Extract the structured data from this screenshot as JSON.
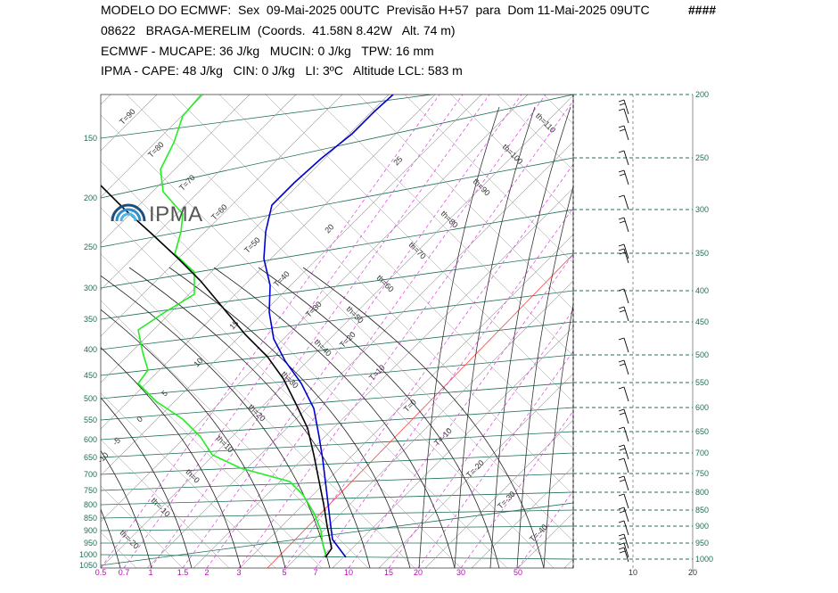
{
  "header": {
    "line1": "MODELO DO ECMWF:  Sex  09-Mai-2025 00UTC  Previsão H+57  para  Dom 11-Mai-2025 09UTC",
    "hash": "####",
    "line2": "08622   BRAGA-MERELIM  (Coords.  41.58N 8.42W   Alt. 74 m)",
    "line3": "ECMWF - MUCAPE: 36 J/kg   MUCIN: 0 J/kg   TPW: 16 mm",
    "line4": "IPMA - CAPE: 48 J/kg   CIN: 0 J/kg   LI: 3ºC   Altitude LCL: 583 m"
  },
  "logo": {
    "text": "IPMA"
  },
  "chart_data": {
    "type": "skew-t",
    "pressure_axis_left": [
      "150",
      "200",
      "250",
      "300",
      "350",
      "400",
      "450",
      "500",
      "550",
      "600",
      "650",
      "700",
      "750",
      "800",
      "850",
      "900",
      "950",
      "1000",
      "1050"
    ],
    "pressure_axis_right": [
      "200",
      "250",
      "300",
      "350",
      "400",
      "450",
      "500",
      "550",
      "600",
      "650",
      "700",
      "750",
      "800",
      "850",
      "900",
      "950",
      "1000"
    ],
    "mixing_ratio_ticks": [
      "0.5",
      "0.7",
      "1",
      "1.5",
      "2",
      "3",
      "5",
      "7",
      "10",
      "15",
      "20",
      "30",
      "50"
    ],
    "wind_speed_ticks": [
      "10",
      "20"
    ],
    "temperature_line_labels": [
      "T=90",
      "T=80",
      "T=70",
      "T=60",
      "T=50",
      "T=40",
      "T=30",
      "T=20",
      "T=10",
      "T=0",
      "T=-10",
      "T=-20",
      "T=-30",
      "T=-40"
    ],
    "theta_labels": [
      "th=110",
      "th=100",
      "th=90",
      "th=80",
      "th=70",
      "th=60",
      "th=50",
      "th=40",
      "th=30",
      "th=20",
      "th=10",
      "th=0",
      "th=-10",
      "th=-20"
    ],
    "moist_adiabat_labels": [
      "25",
      "20",
      "15",
      "10",
      "5",
      "0",
      "-5",
      "-10"
    ],
    "colors": {
      "temperature": "#0000cc",
      "dewpoint": "#22ee22",
      "parcel": "#000000",
      "isobar": "#1f6f57",
      "mixing_ratio": "#e040e0",
      "isotherm": "#999999",
      "isotherm_zero": "#ff4444"
    }
  }
}
